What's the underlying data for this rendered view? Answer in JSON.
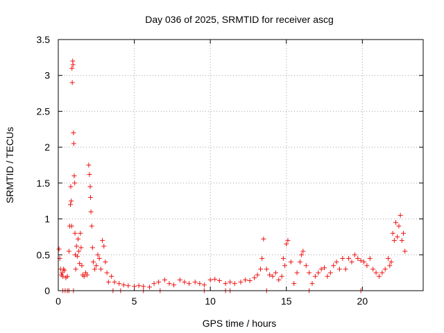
{
  "chart_data": {
    "type": "scatter",
    "title": "Day 036 of 2025, SRMTID for receiver ascg",
    "xlabel": "GPS time / hours",
    "ylabel": "SRMTID / TECUs",
    "xlim": [
      0,
      24
    ],
    "ylim": [
      0,
      3.5
    ],
    "xticks": [
      0,
      5,
      10,
      15,
      20
    ],
    "xtick_labels": [
      "0",
      "5",
      "10",
      "15",
      "20"
    ],
    "yticks": [
      0,
      0.5,
      1,
      1.5,
      2,
      2.5,
      3,
      3.5
    ],
    "ytick_labels": [
      "0",
      "0.5",
      "1",
      "1.5",
      "2",
      "2.5",
      "3",
      "3.5"
    ],
    "grid": true,
    "marker": "plus",
    "series": [
      {
        "name": "SRMTID",
        "color": "#ee1111",
        "x": [
          0.05,
          0.1,
          0.15,
          0.2,
          0.25,
          0.3,
          0.35,
          0.4,
          0.5,
          0.6,
          0.7,
          0.75,
          0.8,
          0.82,
          0.85,
          0.88,
          0.9,
          0.92,
          0.95,
          0.97,
          1.0,
          1.02,
          1.05,
          1.08,
          1.1,
          1.12,
          1.15,
          1.2,
          1.25,
          1.3,
          1.35,
          1.4,
          1.45,
          1.5,
          1.55,
          1.6,
          1.7,
          1.8,
          1.9,
          2.0,
          2.05,
          2.1,
          2.12,
          2.15,
          2.2,
          2.25,
          2.3,
          2.4,
          2.5,
          2.6,
          2.7,
          2.8,
          2.9,
          3.0,
          3.1,
          3.2,
          3.3,
          3.5,
          3.7,
          4.0,
          4.3,
          4.6,
          5.0,
          5.3,
          5.6,
          6.0,
          6.3,
          6.6,
          7.0,
          7.3,
          7.6,
          8.0,
          8.3,
          8.6,
          9.0,
          9.3,
          9.6,
          10.0,
          10.3,
          10.6,
          11.0,
          11.3,
          11.6,
          12.0,
          12.3,
          12.6,
          12.9,
          13.1,
          13.3,
          13.4,
          13.5,
          13.7,
          13.9,
          14.1,
          14.3,
          14.5,
          14.7,
          14.8,
          14.9,
          15.0,
          15.1,
          15.3,
          15.5,
          15.7,
          15.9,
          16.0,
          16.1,
          16.3,
          16.5,
          16.7,
          16.9,
          17.1,
          17.3,
          17.5,
          17.7,
          17.9,
          18.1,
          18.3,
          18.5,
          18.7,
          18.9,
          19.1,
          19.3,
          19.5,
          19.7,
          19.9,
          20.1,
          20.3,
          20.5,
          20.7,
          20.9,
          21.1,
          21.3,
          21.5,
          21.7,
          21.8,
          21.9,
          22.0,
          22.1,
          22.2,
          22.3,
          22.4,
          22.5,
          22.6,
          22.7,
          22.8,
          0.3,
          0.45,
          0.6,
          0.7,
          1.0,
          3.6,
          4.1,
          5.6,
          6.7,
          9.6,
          11.0,
          11.3,
          13.7,
          16.5,
          19.9
        ],
        "y": [
          0.58,
          0.45,
          0.3,
          0.22,
          0.25,
          0.2,
          0.3,
          0.28,
          0.18,
          0.2,
          0.55,
          0.9,
          1.2,
          1.45,
          1.25,
          0.9,
          3.1,
          2.9,
          3.2,
          3.15,
          2.2,
          2.05,
          1.6,
          1.5,
          0.8,
          0.5,
          0.3,
          0.62,
          0.48,
          0.72,
          0.55,
          0.38,
          0.8,
          0.6,
          0.35,
          0.22,
          0.2,
          0.25,
          0.22,
          1.75,
          1.62,
          1.45,
          1.3,
          1.1,
          0.9,
          0.6,
          0.4,
          0.3,
          0.35,
          0.5,
          0.45,
          0.3,
          0.7,
          0.62,
          0.4,
          0.25,
          0.12,
          0.2,
          0.12,
          0.1,
          0.08,
          0.07,
          0.06,
          0.07,
          0.06,
          0.05,
          0.1,
          0.12,
          0.15,
          0.1,
          0.08,
          0.15,
          0.12,
          0.1,
          0.12,
          0.1,
          0.08,
          0.15,
          0.16,
          0.14,
          0.1,
          0.12,
          0.1,
          0.12,
          0.15,
          0.14,
          0.18,
          0.22,
          0.3,
          0.45,
          0.72,
          0.3,
          0.22,
          0.2,
          0.25,
          0.15,
          0.2,
          0.45,
          0.35,
          0.65,
          0.7,
          0.4,
          0.1,
          0.25,
          0.4,
          0.5,
          0.55,
          0.35,
          0.25,
          0.1,
          0.2,
          0.25,
          0.3,
          0.32,
          0.2,
          0.25,
          0.35,
          0.4,
          0.3,
          0.45,
          0.3,
          0.45,
          0.4,
          0.5,
          0.45,
          0.42,
          0.4,
          0.35,
          0.45,
          0.3,
          0.25,
          0.2,
          0.25,
          0.3,
          0.45,
          0.35,
          0.4,
          0.8,
          0.7,
          0.95,
          0.75,
          0.9,
          1.05,
          0.7,
          0.8,
          0.55,
          0,
          0,
          0,
          0,
          0,
          0,
          0,
          0,
          0,
          0,
          0,
          0,
          0,
          0,
          0
        ]
      }
    ]
  }
}
